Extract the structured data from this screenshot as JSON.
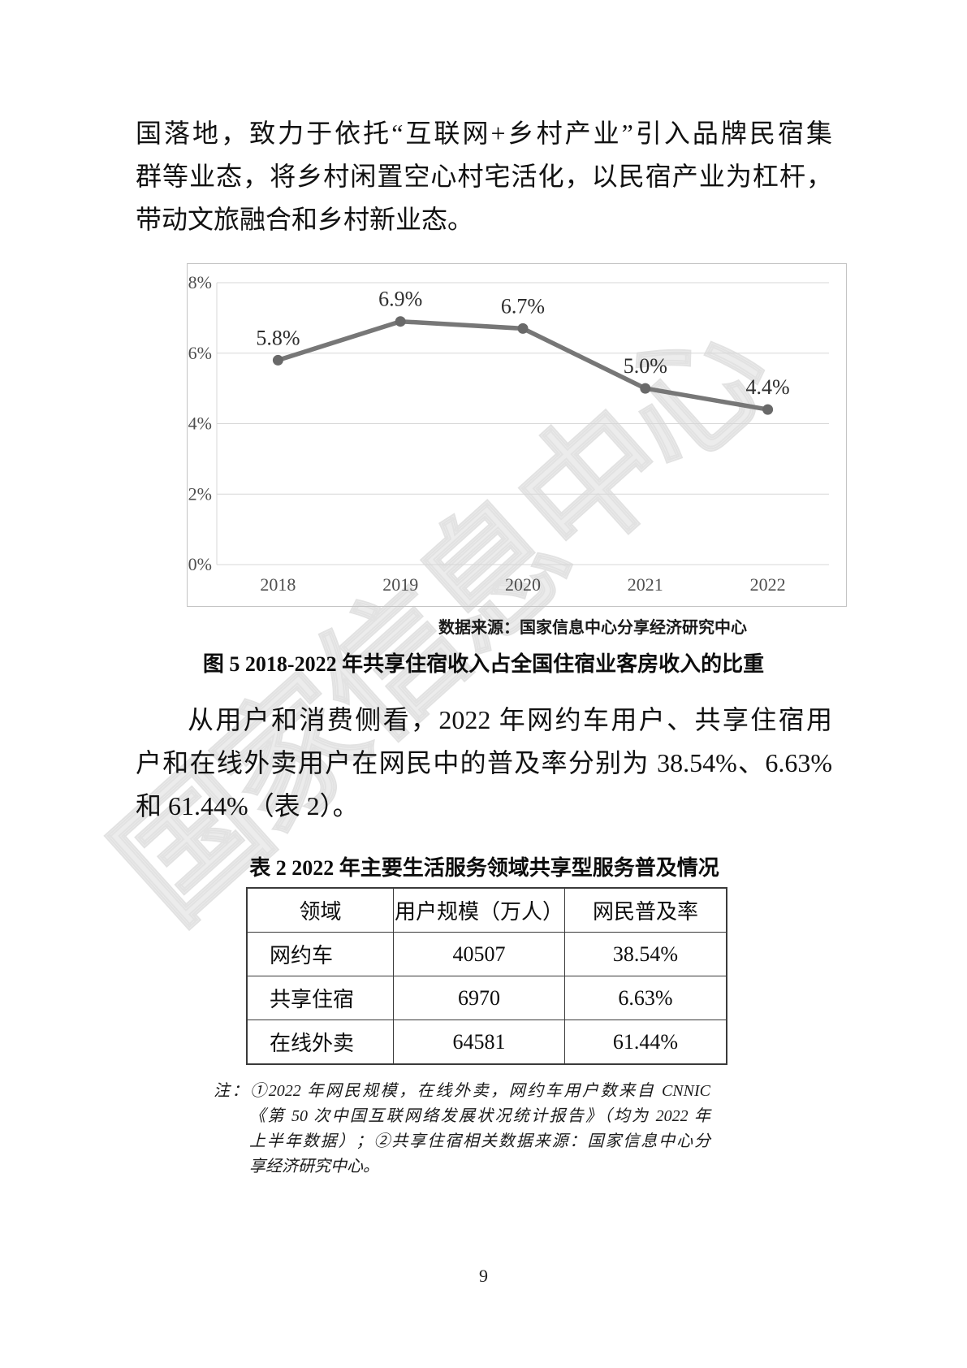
{
  "page": {
    "number": "9",
    "watermark": "国家信息中心"
  },
  "paragraph1": {
    "lines": [
      "国落地，致力于依托“互联网+乡村产业”引入品牌民宿集",
      "群等业态，将乡村闲置空心村宅活化，以民宿产业为杠杆，",
      "带动文旅融合和乡村新业态。"
    ]
  },
  "chart": {
    "source": "数据来源：国家信息中心分享经济研究中心",
    "caption": "图 5  2018-2022 年共享住宿收入占全国住宿业客房收入的比重"
  },
  "chart_data": {
    "type": "line",
    "title": "",
    "xlabel": "",
    "ylabel": "",
    "categories": [
      "2018",
      "2019",
      "2020",
      "2021",
      "2022"
    ],
    "values": [
      5.8,
      6.9,
      6.7,
      5.0,
      4.4
    ],
    "point_labels": [
      "5.8%",
      "6.9%",
      "6.7%",
      "5.0%",
      "4.4%"
    ],
    "ylim": [
      0,
      8
    ],
    "ytick_values": [
      0,
      2,
      4,
      6,
      8
    ],
    "ytick_labels": [
      "0%",
      "2%",
      "4%",
      "6%",
      "8%"
    ],
    "grid": true,
    "legend": false,
    "line_color": "#777777",
    "marker_color": "#696969",
    "grid_color": "#d7d7d7",
    "border_color": "#c4c4c4",
    "tick_color": "#4f4f4f",
    "value_label_color": "#2e2e2e"
  },
  "paragraph2": {
    "lines": [
      "从用户和消费侧看，2022 年网约车用户、共享住宿用",
      "户和在线外卖用户在网民中的普及率分别为 38.54%、6.63%",
      "和 61.44%（表 2）。"
    ]
  },
  "table": {
    "title": "表 2  2022 年主要生活服务领域共享型服务普及情况",
    "headers": [
      "领域",
      "用户规模（万人）",
      "网民普及率"
    ],
    "rows": [
      [
        "网约车",
        "40507",
        "38.54%"
      ],
      [
        "共享住宿",
        "6970",
        "6.63%"
      ],
      [
        "在线外卖",
        "64581",
        "61.44%"
      ]
    ]
  },
  "notes": {
    "lines": [
      "注：①2022 年网民规模，在线外卖，网约车用户数来自 CNNIC",
      "《第 50 次中国互联网络发展状况统计报告》（均为 2022 年",
      "上半年数据）；②共享住宿相关数据来源：国家信息中心分",
      "享经济研究中心。"
    ]
  }
}
